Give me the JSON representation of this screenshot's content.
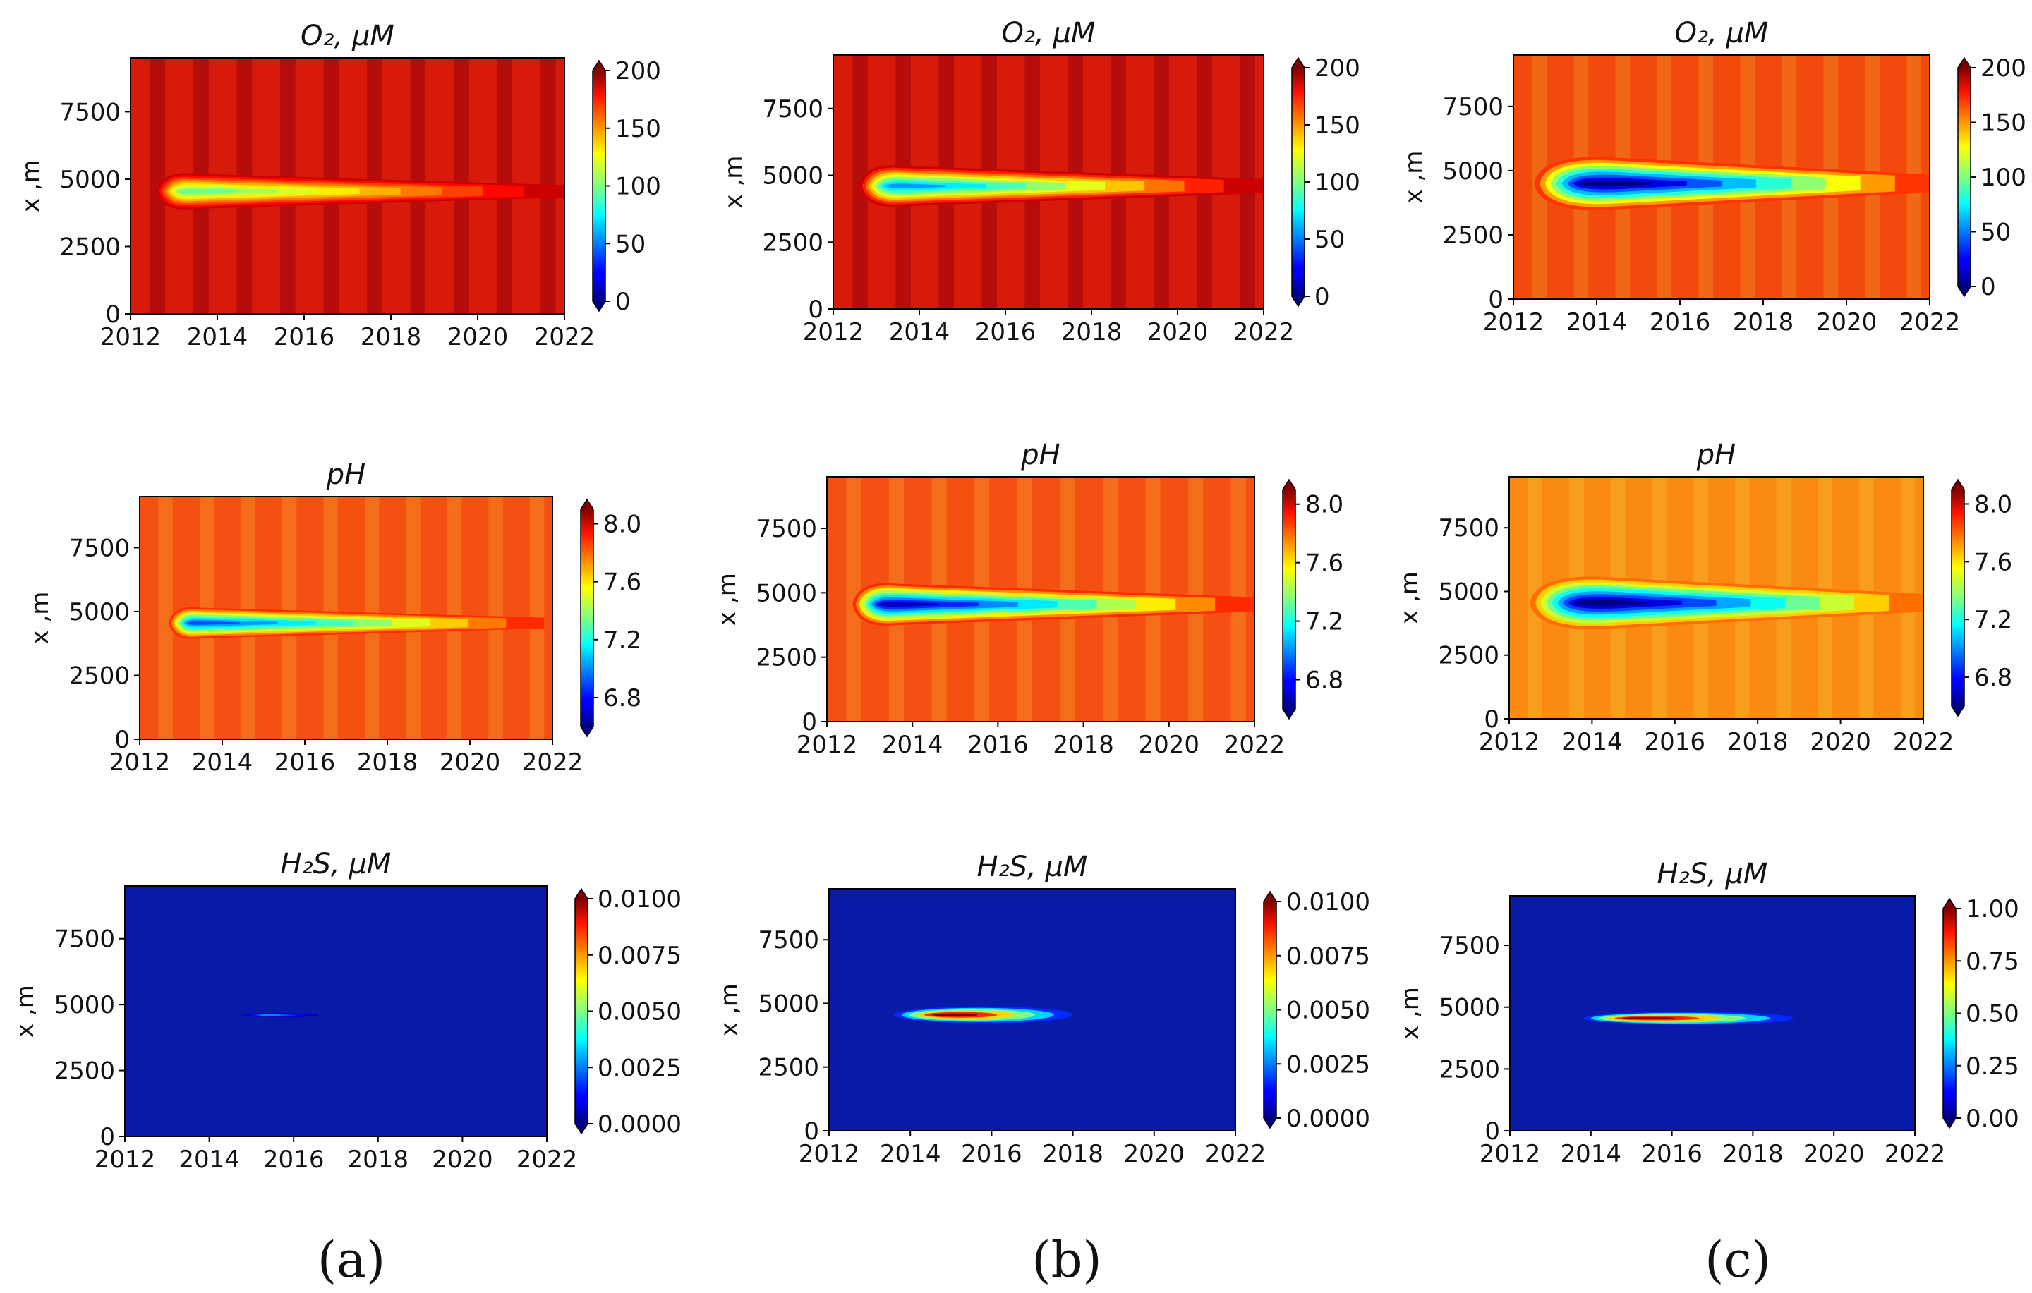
{
  "figure": {
    "column_labels": [
      "(a)",
      "(b)",
      "(c)"
    ]
  },
  "chart_data": [
    {
      "id": "a-o2",
      "type": "heatmap",
      "column": "(a)",
      "row": 1,
      "title": "O₂,  μM",
      "xlabel": "",
      "ylabel": "x ,m",
      "xlim": [
        2012,
        2022
      ],
      "ylim": [
        0,
        9500
      ],
      "x_ticks": [
        2012,
        2014,
        2016,
        2018,
        2020,
        2022
      ],
      "y_ticks": [
        0,
        2500,
        5000,
        7500
      ],
      "background_value": 185,
      "plume": {
        "center_x_m": 4550,
        "start_year": 2012.6,
        "end_year": 2022,
        "half_width_m": 650,
        "min_value": 95,
        "min_year": 2013.5
      },
      "colorbar": {
        "min": 0,
        "max": 200,
        "ticks": [
          "0",
          "50",
          "100",
          "150",
          "200"
        ],
        "tick_values": [
          0,
          50,
          100,
          150,
          200
        ],
        "extend": "both"
      },
      "colors": {
        "background": "#d71a0a",
        "stripe": "#b30c0c"
      }
    },
    {
      "id": "b-o2",
      "type": "heatmap",
      "column": "(b)",
      "row": 1,
      "title": "O₂,  μM",
      "xlabel": "",
      "ylabel": "x ,m",
      "xlim": [
        2012,
        2022
      ],
      "ylim": [
        0,
        9500
      ],
      "x_ticks": [
        2012,
        2014,
        2016,
        2018,
        2020,
        2022
      ],
      "y_ticks": [
        0,
        2500,
        5000,
        7500
      ],
      "background_value": 185,
      "plume": {
        "center_x_m": 4600,
        "start_year": 2012.6,
        "end_year": 2022,
        "half_width_m": 750,
        "min_value": 55,
        "min_year": 2013.7
      },
      "colorbar": {
        "min": 0,
        "max": 200,
        "ticks": [
          "0",
          "50",
          "100",
          "150",
          "200"
        ],
        "tick_values": [
          0,
          50,
          100,
          150,
          200
        ],
        "extend": "both"
      },
      "colors": {
        "background": "#d71a0a",
        "stripe": "#b30c0c"
      }
    },
    {
      "id": "c-o2",
      "type": "heatmap",
      "column": "(c)",
      "row": 1,
      "title": "O₂,  μM",
      "xlabel": "",
      "ylabel": "x ,m",
      "xlim": [
        2012,
        2022
      ],
      "ylim": [
        0,
        9500
      ],
      "x_ticks": [
        2012,
        2014,
        2016,
        2018,
        2020,
        2022
      ],
      "y_ticks": [
        0,
        2500,
        5000,
        7500
      ],
      "background_value": 165,
      "plume": {
        "center_x_m": 4500,
        "start_year": 2012.5,
        "end_year": 2022,
        "half_width_m": 1000,
        "min_value": 0,
        "min_year": 2014.5
      },
      "colorbar": {
        "min": 0,
        "max": 200,
        "ticks": [
          "0",
          "50",
          "100",
          "150",
          "200"
        ],
        "tick_values": [
          0,
          50,
          100,
          150,
          200
        ],
        "extend": "both"
      },
      "colors": {
        "background": "#f24a0c",
        "stripe": "#f06a18"
      }
    },
    {
      "id": "a-ph",
      "type": "heatmap",
      "column": "(a)",
      "row": 2,
      "title": "pH",
      "xlabel": "",
      "ylabel": "x ,m",
      "xlim": [
        2012,
        2022
      ],
      "ylim": [
        0,
        9500
      ],
      "x_ticks": [
        2012,
        2014,
        2016,
        2018,
        2020,
        2022
      ],
      "y_ticks": [
        0,
        2500,
        5000,
        7500
      ],
      "background_value": 7.85,
      "plume": {
        "center_x_m": 4550,
        "start_year": 2012.7,
        "end_year": 2021.8,
        "half_width_m": 600,
        "min_value": 6.9,
        "min_year": 2013.5
      },
      "colorbar": {
        "min": 6.6,
        "max": 8.1,
        "ticks": [
          "6.8",
          "7.2",
          "7.6",
          "8.0"
        ],
        "tick_values": [
          6.8,
          7.2,
          7.6,
          8.0
        ],
        "extend": "both"
      },
      "colors": {
        "background": "#f45012",
        "stripe": "#f4701c"
      }
    },
    {
      "id": "b-ph",
      "type": "heatmap",
      "column": "(b)",
      "row": 2,
      "title": "pH",
      "xlabel": "",
      "ylabel": "x ,m",
      "xlim": [
        2012,
        2022
      ],
      "ylim": [
        0,
        9500
      ],
      "x_ticks": [
        2012,
        2014,
        2016,
        2018,
        2020,
        2022
      ],
      "y_ticks": [
        0,
        2500,
        5000,
        7500
      ],
      "background_value": 7.85,
      "plume": {
        "center_x_m": 4550,
        "start_year": 2012.6,
        "end_year": 2022,
        "half_width_m": 800,
        "min_value": 6.7,
        "min_year": 2013.7
      },
      "colorbar": {
        "min": 6.6,
        "max": 8.1,
        "ticks": [
          "6.8",
          "7.2",
          "7.6",
          "8.0"
        ],
        "tick_values": [
          6.8,
          7.2,
          7.6,
          8.0
        ],
        "extend": "both"
      },
      "colors": {
        "background": "#f45012",
        "stripe": "#f4701c"
      }
    },
    {
      "id": "c-ph",
      "type": "heatmap",
      "column": "(c)",
      "row": 2,
      "title": "pH",
      "xlabel": "",
      "ylabel": "x ,m",
      "xlim": [
        2012,
        2022
      ],
      "ylim": [
        0,
        9500
      ],
      "x_ticks": [
        2012,
        2014,
        2016,
        2018,
        2020,
        2022
      ],
      "y_ticks": [
        0,
        2500,
        5000,
        7500
      ],
      "background_value": 7.75,
      "plume": {
        "center_x_m": 4550,
        "start_year": 2012.5,
        "end_year": 2022,
        "half_width_m": 1000,
        "min_value": 6.6,
        "min_year": 2014.5
      },
      "colorbar": {
        "min": 6.6,
        "max": 8.1,
        "ticks": [
          "6.8",
          "7.2",
          "7.6",
          "8.0"
        ],
        "tick_values": [
          6.8,
          7.2,
          7.6,
          8.0
        ],
        "extend": "both"
      },
      "colors": {
        "background": "#fb8a14",
        "stripe": "#f6a022"
      }
    },
    {
      "id": "a-h2s",
      "type": "heatmap",
      "column": "(a)",
      "row": 3,
      "title": "H₂S,  μM",
      "xlabel": "",
      "ylabel": "x ,m",
      "xlim": [
        2012,
        2022
      ],
      "ylim": [
        0,
        9500
      ],
      "x_ticks": [
        2012,
        2014,
        2016,
        2018,
        2020,
        2022
      ],
      "y_ticks": [
        0,
        2500,
        5000,
        7500
      ],
      "background_value": 0,
      "patch": {
        "center_x_m": 4600,
        "start_year": 2014.8,
        "end_year": 2016.6,
        "half_width_m": 80,
        "peak_value": 0.0012,
        "peak_year": 2015.5
      },
      "colorbar": {
        "min": 0,
        "max": 0.01,
        "ticks": [
          "0.0000",
          "0.0025",
          "0.0050",
          "0.0075",
          "0.0100"
        ],
        "tick_values": [
          0,
          0.0025,
          0.005,
          0.0075,
          0.01
        ],
        "extend": "both"
      },
      "colors": {
        "background": "#0a1aa8"
      }
    },
    {
      "id": "b-h2s",
      "type": "heatmap",
      "column": "(b)",
      "row": 3,
      "title": "H₂S,  μM",
      "xlabel": "",
      "ylabel": "x ,m",
      "xlim": [
        2012,
        2022
      ],
      "ylim": [
        0,
        9500
      ],
      "x_ticks": [
        2012,
        2014,
        2016,
        2018,
        2020,
        2022
      ],
      "y_ticks": [
        0,
        2500,
        5000,
        7500
      ],
      "background_value": 0,
      "patch": {
        "center_x_m": 4550,
        "start_year": 2013.6,
        "end_year": 2018.0,
        "half_width_m": 330,
        "peak_value": 0.01,
        "peak_year": 2015.2
      },
      "colorbar": {
        "min": 0,
        "max": 0.01,
        "ticks": [
          "0.0000",
          "0.0025",
          "0.0050",
          "0.0075",
          "0.0100"
        ],
        "tick_values": [
          0,
          0.0025,
          0.005,
          0.0075,
          0.01
        ],
        "extend": "both"
      },
      "colors": {
        "background": "#0a1aa8"
      }
    },
    {
      "id": "c-h2s",
      "type": "heatmap",
      "column": "(c)",
      "row": 3,
      "title": "H₂S,  μM",
      "xlabel": "",
      "ylabel": "x ,m",
      "xlim": [
        2012,
        2022
      ],
      "ylim": [
        0,
        9500
      ],
      "x_ticks": [
        2012,
        2014,
        2016,
        2018,
        2020,
        2022
      ],
      "y_ticks": [
        0,
        2500,
        5000,
        7500
      ],
      "background_value": 0,
      "patch": {
        "center_x_m": 4550,
        "start_year": 2013.8,
        "end_year": 2019.0,
        "half_width_m": 260,
        "peak_value": 1.0,
        "peak_year": 2015.5
      },
      "colorbar": {
        "min": 0,
        "max": 1.0,
        "ticks": [
          "0.00",
          "0.25",
          "0.50",
          "0.75",
          "1.00"
        ],
        "tick_values": [
          0,
          0.25,
          0.5,
          0.75,
          1.0
        ],
        "extend": "both"
      },
      "colors": {
        "background": "#0a1aa8"
      }
    }
  ]
}
